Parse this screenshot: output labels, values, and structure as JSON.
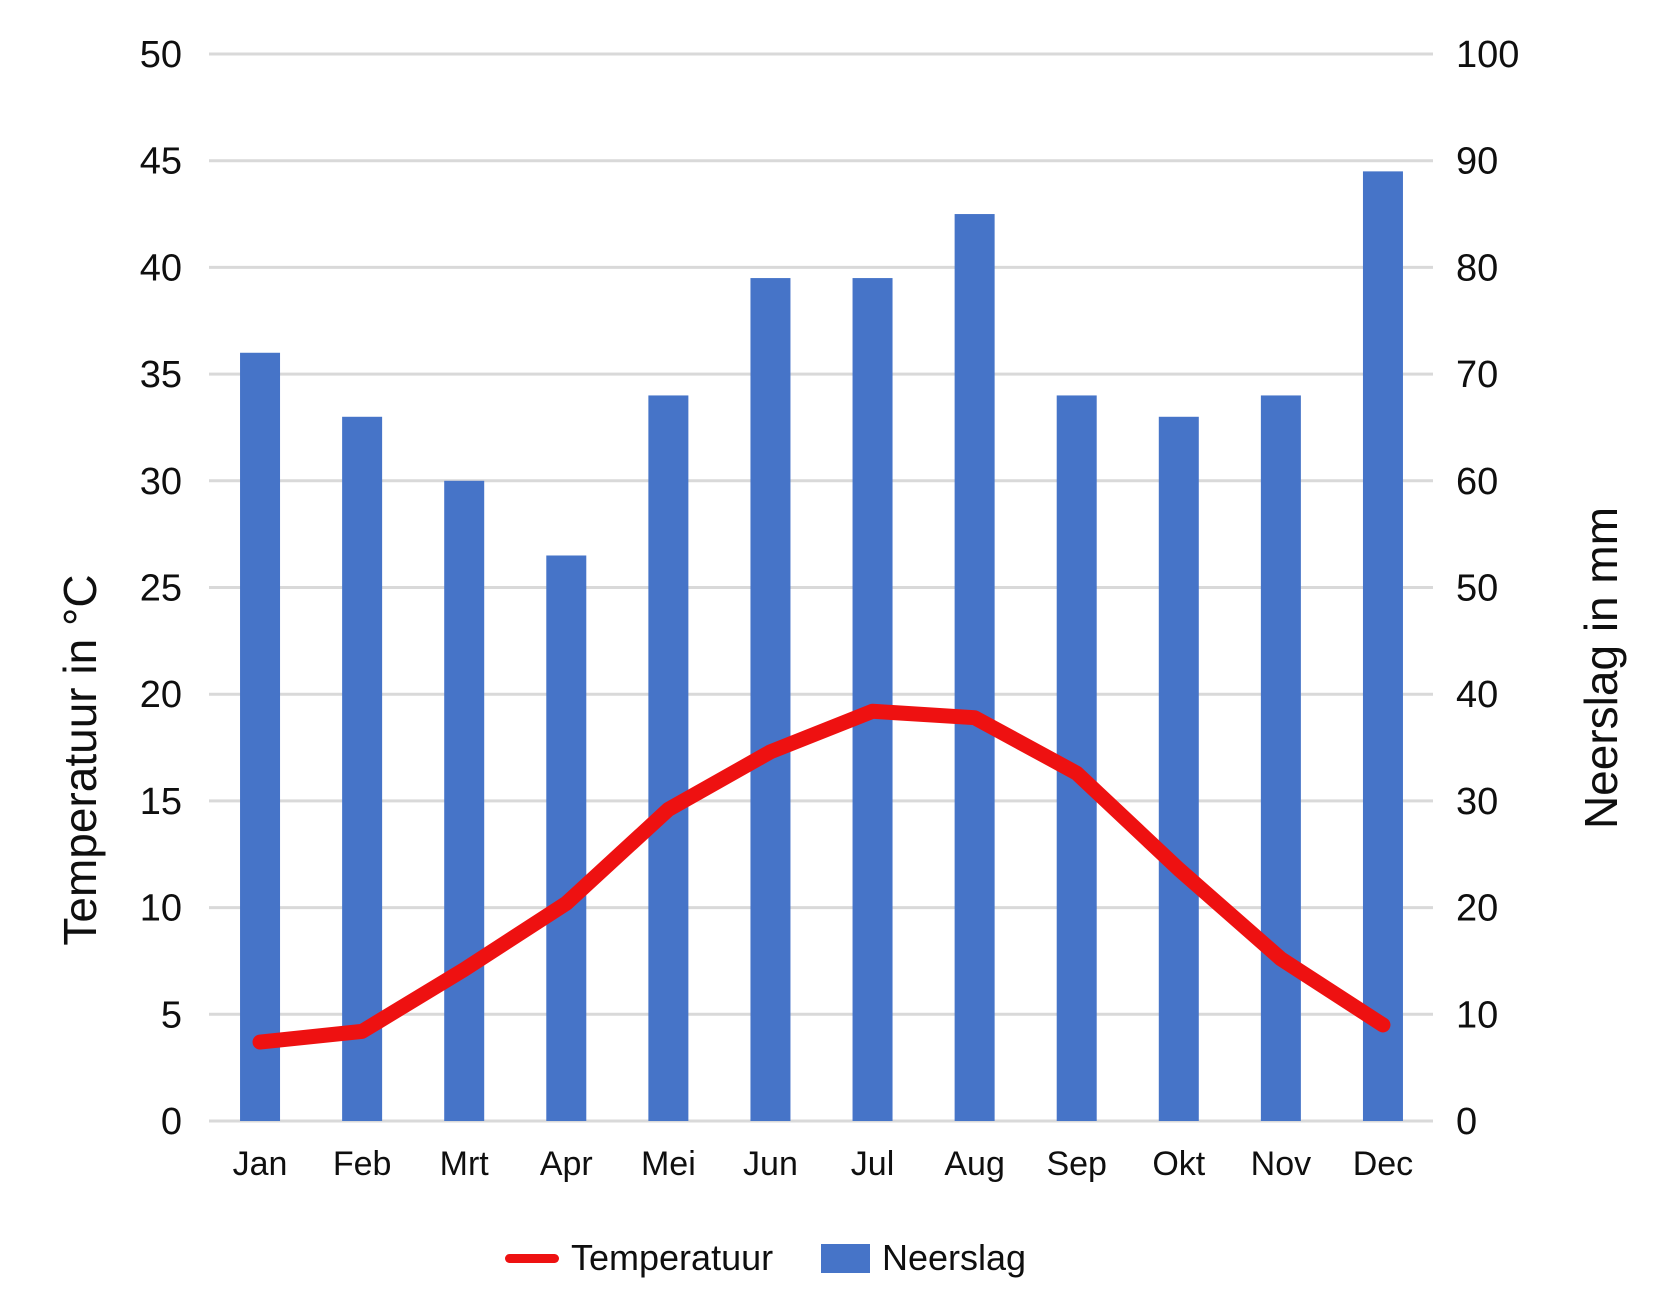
{
  "axis_titles": {
    "left": "Temperatuur in °C",
    "right": "Neerslag in mm"
  },
  "legend": {
    "items": [
      {
        "label": "Temperatuur",
        "swatch": "line-swatch",
        "color": "#ee1111"
      },
      {
        "label": "Neerslag",
        "swatch": "rect-swatch",
        "color": "#4674c8"
      }
    ]
  },
  "chart_data": {
    "type": "combo",
    "categories": [
      "Jan",
      "Feb",
      "Mrt",
      "Apr",
      "Mei",
      "Jun",
      "Jul",
      "Aug",
      "Sep",
      "Okt",
      "Nov",
      "Dec"
    ],
    "series": [
      {
        "name": "Neerslag",
        "type": "bar",
        "axis": "right",
        "unit": "mm",
        "color": "#4674c8",
        "values": [
          72,
          66,
          60,
          53,
          68,
          79,
          79,
          85,
          68,
          66,
          68,
          89
        ]
      },
      {
        "name": "Temperatuur",
        "type": "line",
        "axis": "left",
        "unit": "°C",
        "color": "#ee1111",
        "values": [
          3.7,
          4.2,
          7.1,
          10.2,
          14.6,
          17.3,
          19.2,
          18.9,
          16.3,
          11.8,
          7.6,
          4.5
        ]
      }
    ],
    "left_axis": {
      "label": "Temperatuur in °C",
      "min": 0,
      "max": 50,
      "tick_step": 5,
      "ticks": [
        0,
        5,
        10,
        15,
        20,
        25,
        30,
        35,
        40,
        45,
        50
      ]
    },
    "right_axis": {
      "label": "Neerslag in mm",
      "min": 0,
      "max": 100,
      "tick_step": 10,
      "ticks": [
        0,
        10,
        20,
        30,
        40,
        50,
        60,
        70,
        80,
        90,
        100
      ]
    },
    "grid": true,
    "legend_position": "bottom",
    "gridline_color": "#d9d9d9",
    "text_color": "#0f0f0f",
    "background": "#ffffff"
  }
}
